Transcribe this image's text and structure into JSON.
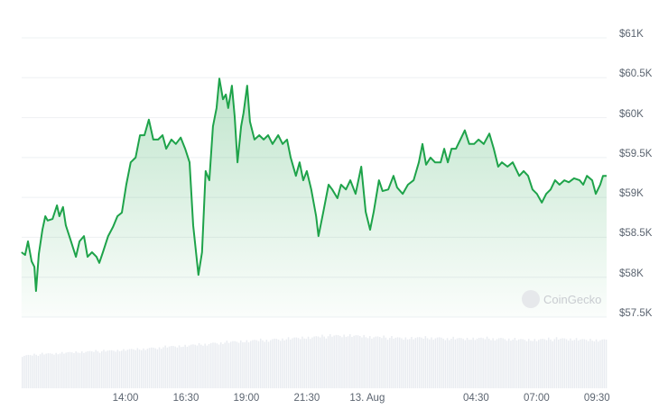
{
  "chart_data": {
    "type": "line",
    "title": "",
    "xlabel": "",
    "ylabel": "",
    "ylim": [
      57500,
      61000
    ],
    "grid": true,
    "y_ticks": [
      "$61K",
      "$60.5K",
      "$60K",
      "$59.5K",
      "$59K",
      "$58.5K",
      "$58K",
      "$57.5K"
    ],
    "y_tick_values": [
      61000,
      60500,
      60000,
      59500,
      59000,
      58500,
      58000,
      57500
    ],
    "x_ticks": [
      "14:00",
      "16:30",
      "19:00",
      "21:30",
      "13. Aug",
      "04:30",
      "07:00",
      "09:30"
    ],
    "x_tick_times": [
      "12 Aug 14:00",
      "12 Aug 16:30",
      "12 Aug 19:00",
      "12 Aug 21:30",
      "13 Aug 00:00",
      "13 Aug 04:30",
      "13 Aug 07:00",
      "13 Aug 09:30"
    ],
    "line_color": "#1ea34a",
    "volume_color": "#e9ecf1",
    "watermark": "CoinGecko",
    "series": [
      {
        "points": [
          [
            "12 Aug 09:42",
            58313
          ],
          [
            "12 Aug 09:51",
            58279
          ],
          [
            "12 Aug 09:58",
            58450
          ],
          [
            "12 Aug 10:07",
            58200
          ],
          [
            "12 Aug 10:14",
            58130
          ],
          [
            "12 Aug 10:18",
            57827
          ],
          [
            "12 Aug 10:25",
            58290
          ],
          [
            "12 Aug 10:34",
            58595
          ],
          [
            "12 Aug 10:41",
            58765
          ],
          [
            "12 Aug 10:47",
            58710
          ],
          [
            "12 Aug 10:59",
            58730
          ],
          [
            "12 Aug 11:10",
            58900
          ],
          [
            "12 Aug 11:16",
            58765
          ],
          [
            "12 Aug 11:25",
            58880
          ],
          [
            "12 Aug 11:32",
            58650
          ],
          [
            "12 Aug 11:43",
            58480
          ],
          [
            "12 Aug 11:57",
            58255
          ],
          [
            "12 Aug 12:06",
            58450
          ],
          [
            "12 Aug 12:17",
            58515
          ],
          [
            "12 Aug 12:26",
            58255
          ],
          [
            "12 Aug 12:37",
            58313
          ],
          [
            "12 Aug 12:48",
            58255
          ],
          [
            "12 Aug 12:55",
            58180
          ],
          [
            "12 Aug 13:04",
            58313
          ],
          [
            "12 Aug 13:17",
            58515
          ],
          [
            "12 Aug 13:29",
            58630
          ],
          [
            "12 Aug 13:40",
            58765
          ],
          [
            "12 Aug 13:51",
            58810
          ],
          [
            "12 Aug 14:02",
            59160
          ],
          [
            "12 Aug 14:13",
            59440
          ],
          [
            "12 Aug 14:25",
            59500
          ],
          [
            "12 Aug 14:36",
            59780
          ],
          [
            "12 Aug 14:47",
            59780
          ],
          [
            "12 Aug 14:58",
            59975
          ],
          [
            "12 Aug 15:09",
            59725
          ],
          [
            "12 Aug 15:21",
            59725
          ],
          [
            "12 Aug 15:32",
            59780
          ],
          [
            "12 Aug 15:41",
            59610
          ],
          [
            "12 Aug 15:54",
            59725
          ],
          [
            "12 Aug 16:05",
            59670
          ],
          [
            "12 Aug 16:17",
            59750
          ],
          [
            "12 Aug 16:28",
            59610
          ],
          [
            "12 Aug 16:39",
            59440
          ],
          [
            "12 Aug 16:48",
            58650
          ],
          [
            "12 Aug 17:01",
            58030
          ],
          [
            "12 Aug 17:10",
            58313
          ],
          [
            "12 Aug 17:19",
            59330
          ],
          [
            "12 Aug 17:28",
            59215
          ],
          [
            "12 Aug 17:37",
            59890
          ],
          [
            "12 Aug 17:46",
            60120
          ],
          [
            "12 Aug 17:53",
            60490
          ],
          [
            "12 Aug 18:02",
            60230
          ],
          [
            "12 Aug 18:09",
            60290
          ],
          [
            "12 Aug 18:15",
            60120
          ],
          [
            "12 Aug 18:24",
            60400
          ],
          [
            "12 Aug 18:31",
            60010
          ],
          [
            "12 Aug 18:38",
            59440
          ],
          [
            "12 Aug 18:47",
            59890
          ],
          [
            "12 Aug 18:53",
            60060
          ],
          [
            "12 Aug 19:02",
            60400
          ],
          [
            "12 Aug 19:09",
            59950
          ],
          [
            "12 Aug 19:20",
            59725
          ],
          [
            "12 Aug 19:32",
            59780
          ],
          [
            "12 Aug 19:43",
            59725
          ],
          [
            "12 Aug 19:54",
            59780
          ],
          [
            "12 Aug 20:05",
            59670
          ],
          [
            "12 Aug 20:19",
            59780
          ],
          [
            "12 Aug 20:30",
            59670
          ],
          [
            "12 Aug 20:41",
            59725
          ],
          [
            "12 Aug 20:50",
            59500
          ],
          [
            "12 Aug 21:03",
            59270
          ],
          [
            "12 Aug 21:12",
            59440
          ],
          [
            "12 Aug 21:21",
            59215
          ],
          [
            "12 Aug 21:30",
            59330
          ],
          [
            "12 Aug 21:41",
            59100
          ],
          [
            "12 Aug 21:53",
            58765
          ],
          [
            "12 Aug 21:59",
            58515
          ],
          [
            "12 Aug 22:11",
            58820
          ],
          [
            "12 Aug 22:24",
            59160
          ],
          [
            "12 Aug 22:33",
            59100
          ],
          [
            "12 Aug 22:46",
            58990
          ],
          [
            "12 Aug 22:55",
            59160
          ],
          [
            "12 Aug 23:07",
            59100
          ],
          [
            "12 Aug 23:18",
            59215
          ],
          [
            "12 Aug 23:31",
            59045
          ],
          [
            "12 Aug 23:45",
            59385
          ],
          [
            "12 Aug 23:56",
            58820
          ],
          [
            "13 Aug 00:07",
            58595
          ],
          [
            "13 Aug 00:16",
            58820
          ],
          [
            "13 Aug 00:29",
            59215
          ],
          [
            "13 Aug 00:38",
            59080
          ],
          [
            "13 Aug 00:52",
            59100
          ],
          [
            "13 Aug 01:05",
            59270
          ],
          [
            "13 Aug 01:14",
            59125
          ],
          [
            "13 Aug 01:28",
            59045
          ],
          [
            "13 Aug 01:41",
            59160
          ],
          [
            "13 Aug 01:55",
            59215
          ],
          [
            "13 Aug 02:08",
            59440
          ],
          [
            "13 Aug 02:17",
            59670
          ],
          [
            "13 Aug 02:26",
            59410
          ],
          [
            "13 Aug 02:37",
            59500
          ],
          [
            "13 Aug 02:48",
            59440
          ],
          [
            "13 Aug 03:02",
            59440
          ],
          [
            "13 Aug 03:11",
            59610
          ],
          [
            "13 Aug 03:20",
            59440
          ],
          [
            "13 Aug 03:29",
            59610
          ],
          [
            "13 Aug 03:40",
            59610
          ],
          [
            "13 Aug 03:51",
            59725
          ],
          [
            "13 Aug 04:02",
            59840
          ],
          [
            "13 Aug 04:13",
            59670
          ],
          [
            "13 Aug 04:25",
            59670
          ],
          [
            "13 Aug 04:36",
            59725
          ],
          [
            "13 Aug 04:49",
            59670
          ],
          [
            "13 Aug 05:03",
            59800
          ],
          [
            "13 Aug 05:14",
            59610
          ],
          [
            "13 Aug 05:25",
            59385
          ],
          [
            "13 Aug 05:34",
            59440
          ],
          [
            "13 Aug 05:48",
            59385
          ],
          [
            "13 Aug 06:01",
            59440
          ],
          [
            "13 Aug 06:17",
            59270
          ],
          [
            "13 Aug 06:28",
            59330
          ],
          [
            "13 Aug 06:39",
            59270
          ],
          [
            "13 Aug 06:50",
            59100
          ],
          [
            "13 Aug 07:01",
            59045
          ],
          [
            "13 Aug 07:13",
            58935
          ],
          [
            "13 Aug 07:24",
            59045
          ],
          [
            "13 Aug 07:35",
            59100
          ],
          [
            "13 Aug 07:46",
            59215
          ],
          [
            "13 Aug 07:57",
            59160
          ],
          [
            "13 Aug 08:09",
            59215
          ],
          [
            "13 Aug 08:20",
            59190
          ],
          [
            "13 Aug 08:33",
            59240
          ],
          [
            "13 Aug 08:47",
            59215
          ],
          [
            "13 Aug 08:56",
            59160
          ],
          [
            "13 Aug 09:05",
            59270
          ],
          [
            "13 Aug 09:18",
            59215
          ],
          [
            "13 Aug 09:27",
            59045
          ],
          [
            "13 Aug 09:38",
            59160
          ],
          [
            "13 Aug 09:45",
            59270
          ],
          [
            "13 Aug 09:54",
            59270
          ]
        ]
      }
    ],
    "volume_relative": [
      0.55,
      0.58,
      0.6,
      0.62,
      0.63,
      0.65,
      0.67,
      0.7,
      0.72,
      0.75,
      0.78,
      0.8,
      0.82,
      0.84,
      0.86,
      0.88,
      0.9,
      0.88,
      0.86,
      0.85,
      0.86,
      0.85,
      0.84,
      0.85,
      0.84,
      0.82,
      0.83,
      0.84,
      0.82,
      0.82
    ]
  }
}
